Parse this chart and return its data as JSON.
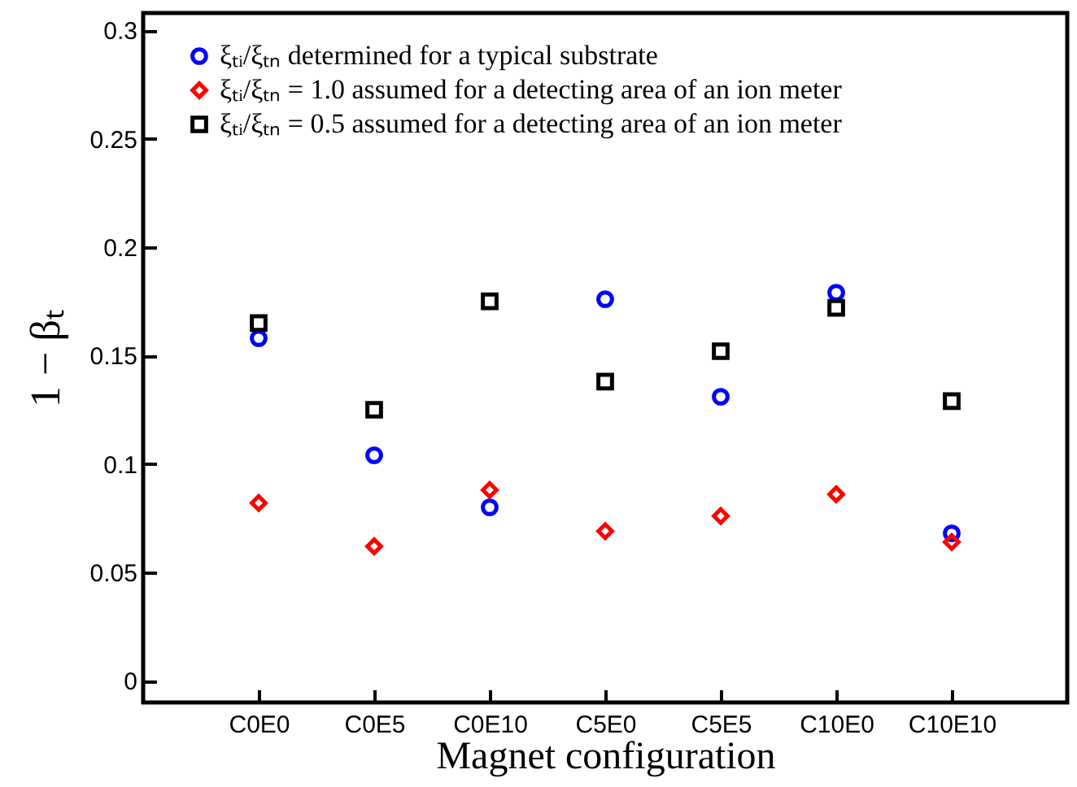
{
  "chart_data": {
    "type": "scatter",
    "xlabel": "Magnet configuration",
    "ylabel": "1 − βₜ",
    "categories": [
      "C0E0",
      "C0E5",
      "C0E10",
      "C5E0",
      "C5E5",
      "C10E0",
      "C10E10"
    ],
    "series": [
      {
        "name": "ξₜᵢ/ξₜₙ determined for a typical substrate",
        "color": "#0000ff",
        "marker": "circle",
        "values": [
          0.158,
          0.104,
          0.08,
          0.176,
          0.131,
          0.179,
          0.068
        ]
      },
      {
        "name": "ξₜᵢ/ξₜₙ = 1.0 assumed for a detecting area of an ion meter",
        "color": "#ff0000",
        "marker": "diamond",
        "values": [
          0.082,
          0.062,
          0.088,
          0.069,
          0.076,
          0.086,
          0.064
        ]
      },
      {
        "name": "ξₜᵢ/ξₜₙ = 0.5 assumed for a detecting area of an ion meter",
        "color": "#000000",
        "marker": "square",
        "values": [
          0.165,
          0.125,
          0.175,
          0.138,
          0.152,
          0.172,
          0.129
        ]
      }
    ],
    "ylim": [
      -0.01,
      0.308
    ],
    "yticks": [
      0,
      0.05,
      0.1,
      0.15,
      0.2,
      0.25,
      0.3
    ],
    "grid": false,
    "legend": "top left"
  }
}
